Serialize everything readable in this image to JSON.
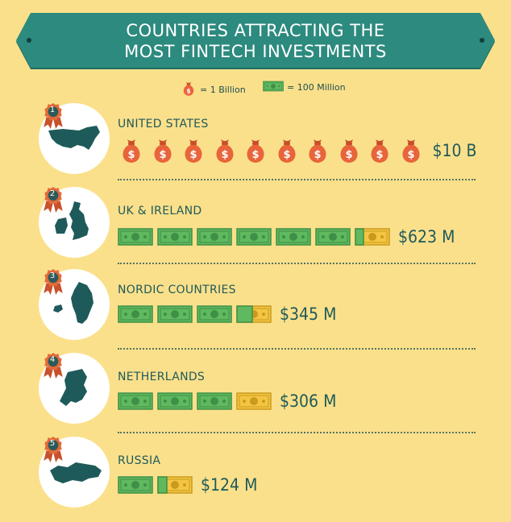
{
  "title_line1": "COUNTRIES ATTRACTING THE",
  "title_line2": "MOST FINTECH INVESTMENTS",
  "legend": {
    "bag_label": "= 1 Billion",
    "bill_label": "= 100 Million"
  },
  "colors": {
    "background": "#fbe08b",
    "banner": "#2d8a7e",
    "banner_shadow": "#1f6e64",
    "bag": "#e8643b",
    "bill": "#5fb95f",
    "bill_partial": "#f4c542",
    "text": "#1f5a5a",
    "ribbon": "#e26a3b"
  },
  "chart_data": {
    "type": "pictograph",
    "title": "COUNTRIES ATTRACTING THE MOST FINTECH INVESTMENTS",
    "categories": [
      "UNITED STATES",
      "UK & IRELAND",
      "NORDIC COUNTRIES",
      "NETHERLANDS",
      "RUSSIA"
    ],
    "ranks": [
      "1",
      "2",
      "3",
      "4",
      "5"
    ],
    "values_usd_millions": [
      10000,
      623,
      345,
      306,
      124
    ],
    "value_labels": [
      "$10 B",
      "$623 M",
      "$345 M",
      "$306 M",
      "$124 M"
    ],
    "units": [
      {
        "icon": "money-bag",
        "count": 10
      },
      {
        "icon": "banknote",
        "count": 6.23
      },
      {
        "icon": "banknote",
        "count": 3.45
      },
      {
        "icon": "banknote",
        "count": 3.06
      },
      {
        "icon": "banknote",
        "count": 1.24
      }
    ]
  }
}
